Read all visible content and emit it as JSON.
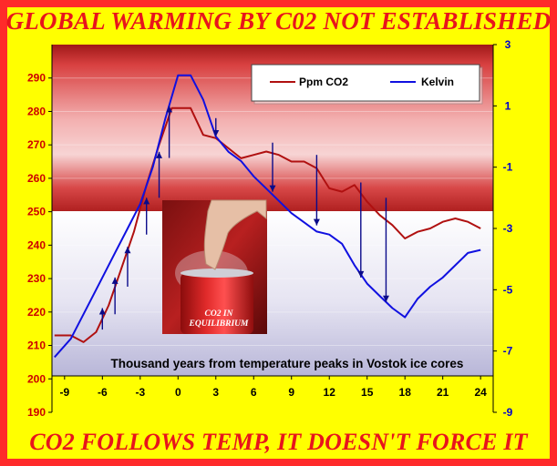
{
  "headline": "GLOBAL WARMING BY C02 NOT ESTABLISHED",
  "footer": "CO2 FOLLOWS TEMP, IT DOESN'T FORCE IT",
  "can_text_line1": "CO2 IN",
  "can_text_line2": "EQUILIBRIUM",
  "colors": {
    "co2": "#b01010",
    "kelvin": "#1010e0",
    "left_axis": "#cc0000",
    "right_axis": "#0000cc",
    "headline": "#e8141c",
    "background_red": "#ff2a2a",
    "background_yellow": "#ffff00"
  },
  "chart_data": {
    "type": "line",
    "xlabel": "Thousand years from temperature peaks in Vostok ice cores",
    "xlim": [
      -10,
      25
    ],
    "x_ticks": [
      -9,
      -6,
      -3,
      0,
      3,
      6,
      9,
      12,
      15,
      18,
      21,
      24
    ],
    "x_tick_labels": [
      "-9",
      "-6",
      "-3",
      "0",
      "3",
      "6",
      "9",
      "12",
      "15",
      "18",
      "21",
      "24"
    ],
    "y_left": {
      "ylim": [
        190,
        300
      ],
      "ticks": [
        190,
        200,
        210,
        220,
        230,
        240,
        250,
        260,
        270,
        280,
        290
      ],
      "tick_labels": [
        "190",
        "200",
        "210",
        "220",
        "230",
        "240",
        "250",
        "260",
        "270",
        "280",
        "290"
      ]
    },
    "y_right": {
      "ylim": [
        -9,
        3
      ],
      "ticks": [
        -9,
        -7,
        -5,
        -3,
        -1,
        1,
        3
      ],
      "tick_labels": [
        "-9",
        "-7",
        "-5",
        "-3",
        "-1",
        "1",
        "3"
      ]
    },
    "legend": {
      "placement": "top-right",
      "entries": [
        "Ppm CO2",
        "Kelvin"
      ]
    },
    "series": [
      {
        "name": "Ppm CO2",
        "axis": "left",
        "x": [
          -9.8,
          -8.5,
          -7.5,
          -6.5,
          -5.5,
          -4.5,
          -3.5,
          -2.5,
          -1.5,
          -0.5,
          0.0,
          1.0,
          2.0,
          3.0,
          4.0,
          5.0,
          6.0,
          7.0,
          8.0,
          9.0,
          10.0,
          11.0,
          12.0,
          13.0,
          14.0,
          15.0,
          16.0,
          17.0,
          18.0,
          19.0,
          20.0,
          21.0,
          22.0,
          23.0,
          24.0
        ],
        "values": [
          213,
          213,
          211,
          214,
          222,
          233,
          244,
          258,
          270,
          281,
          281,
          281,
          273,
          272,
          269,
          266,
          267,
          268,
          267,
          265,
          265,
          263,
          257,
          256,
          258,
          253,
          249,
          246,
          242,
          244,
          245,
          247,
          248,
          247,
          245
        ]
      },
      {
        "name": "Kelvin",
        "axis": "right",
        "x": [
          -9.8,
          -8.5,
          -7.0,
          -6.0,
          -5.0,
          -4.0,
          -3.0,
          -2.0,
          -1.0,
          0.0,
          1.0,
          2.0,
          3.0,
          4.0,
          5.0,
          6.0,
          7.0,
          8.0,
          9.0,
          10.0,
          11.0,
          12.0,
          13.0,
          14.0,
          15.0,
          16.0,
          17.0,
          18.0,
          19.0,
          20.0,
          21.0,
          22.0,
          23.0,
          24.0
        ],
        "values": [
          -7.2,
          -6.6,
          -5.4,
          -4.6,
          -3.8,
          -3.0,
          -2.2,
          -1.0,
          0.6,
          2.0,
          2.0,
          1.2,
          0.0,
          -0.5,
          -0.8,
          -1.3,
          -1.7,
          -2.1,
          -2.5,
          -2.8,
          -3.1,
          -3.2,
          -3.5,
          -4.2,
          -4.8,
          -5.2,
          -5.6,
          -5.9,
          -5.3,
          -4.9,
          -4.6,
          -4.2,
          -3.8,
          -3.7
        ]
      }
    ],
    "arrows_up": [
      {
        "x": -6.0,
        "from": -6.3,
        "to": -5.6
      },
      {
        "x": -5.0,
        "from": -5.8,
        "to": -4.6
      },
      {
        "x": -4.0,
        "from": -4.9,
        "to": -3.6
      },
      {
        "x": -2.5,
        "from": -3.2,
        "to": -2.0
      },
      {
        "x": -1.5,
        "from": -2.0,
        "to": -0.5
      },
      {
        "x": -0.7,
        "from": -0.7,
        "to": 1.0
      }
    ],
    "arrows_down": [
      {
        "x": 3.0,
        "from": 0.6,
        "to": 0.0
      },
      {
        "x": 7.5,
        "from": -0.2,
        "to": -1.8
      },
      {
        "x": 11.0,
        "from": -0.6,
        "to": -2.9
      },
      {
        "x": 14.5,
        "from": -1.5,
        "to": -4.6
      },
      {
        "x": 16.5,
        "from": -2.0,
        "to": -5.4
      }
    ]
  }
}
